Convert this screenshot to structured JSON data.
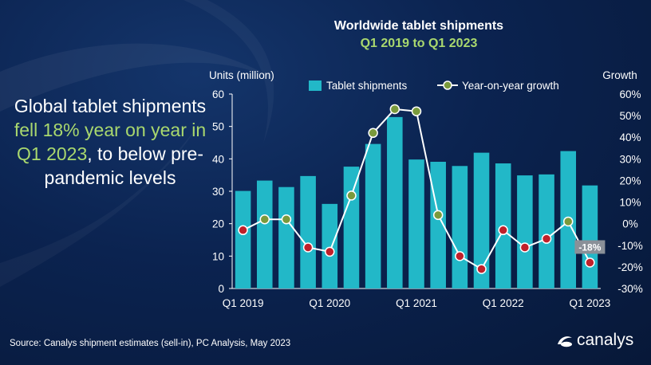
{
  "headline": {
    "part1": "Global tablet shipments ",
    "highlight": "fell 18% year on year in Q1 2023",
    "part2": ", to below pre-pandemic levels"
  },
  "source": "Source: Canalys shipment estimates (sell-in), PC Analysis, May 2023",
  "logo": {
    "text": "canalys"
  },
  "colors": {
    "bar": "#22b8c8",
    "line": "#ffffff",
    "marker_pos": "#7a9a3c",
    "marker_neg": "#c0202a",
    "accent": "#a9d86e"
  },
  "chart_data": {
    "type": "bar",
    "title": "Worldwide tablet shipments",
    "subtitle": "Q1 2019 to Q1 2023",
    "ylabel": "Units (million)",
    "y2label": "Growth",
    "ylim": [
      0,
      60
    ],
    "y2lim": [
      -30,
      60
    ],
    "yticks": [
      "0",
      "10",
      "20",
      "30",
      "40",
      "50",
      "60"
    ],
    "y2ticks": [
      "-30%",
      "-20%",
      "-10%",
      "0%",
      "10%",
      "20%",
      "30%",
      "40%",
      "50%",
      "60%"
    ],
    "xtick_labels": [
      "Q1 2019",
      "Q1 2020",
      "Q1 2021",
      "Q1 2022",
      "Q1 2023"
    ],
    "categories": [
      "Q1 2019",
      "Q2 2019",
      "Q3 2019",
      "Q4 2019",
      "Q1 2020",
      "Q2 2020",
      "Q3 2020",
      "Q4 2020",
      "Q1 2021",
      "Q2 2021",
      "Q3 2021",
      "Q4 2021",
      "Q1 2022",
      "Q2 2022",
      "Q3 2022",
      "Q4 2022",
      "Q1 2023"
    ],
    "legend_position": "top",
    "series": [
      {
        "name": "Tablet shipments",
        "type": "bar",
        "values": [
          30.1,
          33.3,
          31.3,
          34.7,
          26.1,
          37.6,
          44.6,
          52.9,
          39.8,
          39.1,
          37.8,
          41.9,
          38.6,
          34.9,
          35.2,
          42.4,
          31.8
        ]
      },
      {
        "name": "Year-on-year growth",
        "type": "line",
        "axis": "secondary",
        "values": [
          -3,
          2,
          2,
          -11,
          -13,
          13,
          42,
          53,
          52,
          4,
          -15,
          -21,
          -3,
          -11,
          -7,
          1,
          -18
        ]
      }
    ],
    "annotations": [
      {
        "category": "Q1 2023",
        "text": "-18%"
      }
    ]
  }
}
